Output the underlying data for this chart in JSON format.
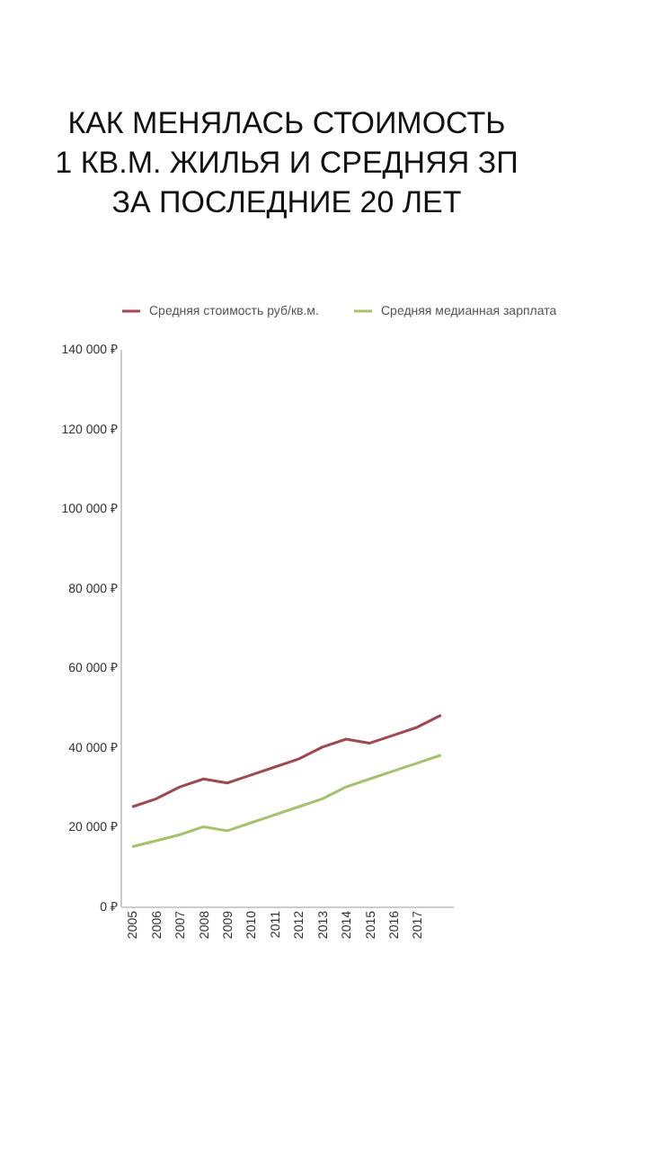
{
  "chart_data": {
    "type": "line",
    "title": "КАК МЕНЯЛАСЬ СТОИМОСТЬ\n1 КВ.М. ЖИЛЬЯ И СРЕДНЯЯ ЗП\nЗА ПОСЛЕДНИЕ 20 ЛЕТ",
    "categories": [
      "2005",
      "2006",
      "2007",
      "2008",
      "2009",
      "2010",
      "2011",
      "2012",
      "2013",
      "2014",
      "2015",
      "2016",
      "2017",
      null
    ],
    "series": [
      {
        "name": "Средняя стоимость руб/кв.м.",
        "color": "#a0474f",
        "values": [
          25000,
          27000,
          30000,
          32000,
          31000,
          33000,
          35000,
          37000,
          40000,
          42000,
          41000,
          43000,
          45000,
          48000
        ]
      },
      {
        "name": "Средняя медианная зарплата",
        "color": "#a3c269",
        "values": [
          15000,
          16500,
          18000,
          20000,
          19000,
          21000,
          23000,
          25000,
          27000,
          30000,
          32000,
          34000,
          36000,
          38000
        ]
      }
    ],
    "ylim": [
      0,
      140000
    ],
    "yticks": [
      {
        "value": 0,
        "label": "0 ₽"
      },
      {
        "value": 20000,
        "label": "20 000 ₽"
      },
      {
        "value": 40000,
        "label": "40 000 ₽"
      },
      {
        "value": 60000,
        "label": "60 000 ₽"
      },
      {
        "value": 80000,
        "label": "80 000 ₽"
      },
      {
        "value": 100000,
        "label": "100 000 ₽"
      },
      {
        "value": 120000,
        "label": "120 000 ₽"
      },
      {
        "value": 140000,
        "label": "140 000 ₽"
      }
    ],
    "grid": false,
    "legend": "top",
    "marker": "none",
    "line_style": "solid"
  }
}
